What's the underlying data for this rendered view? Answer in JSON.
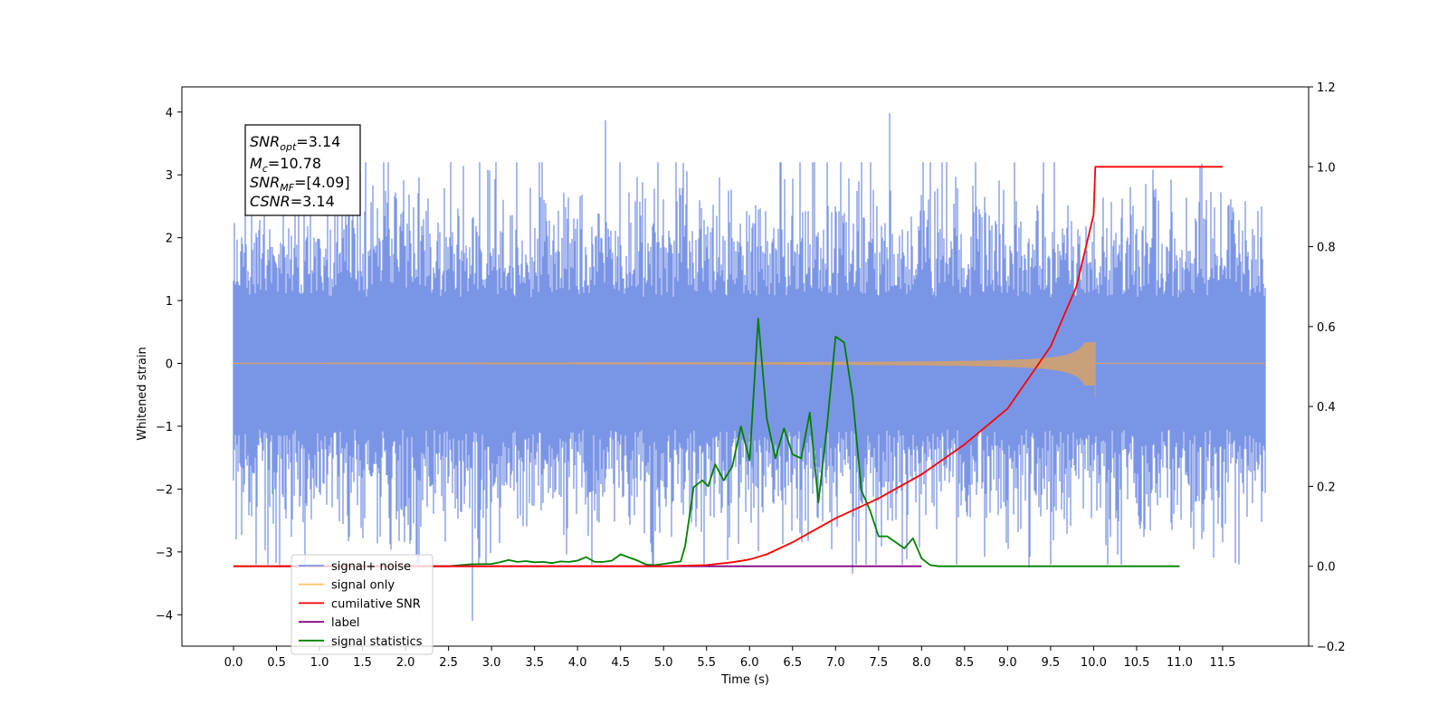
{
  "chart_data": {
    "type": "line",
    "xlabel": "Time (s)",
    "ylabel": "Whitened strain",
    "xlim": [
      -0.6,
      12.5
    ],
    "ylim": [
      -4.5,
      4.4
    ],
    "y2lim": [
      -0.2,
      1.2
    ],
    "xticks": [
      "0.0",
      "0.5",
      "1.0",
      "1.5",
      "2.0",
      "2.5",
      "3.0",
      "3.5",
      "4.0",
      "4.5",
      "5.0",
      "5.5",
      "6.0",
      "6.5",
      "7.0",
      "7.5",
      "8.0",
      "8.5",
      "9.0",
      "9.5",
      "10.0",
      "10.5",
      "11.0",
      "11.5"
    ],
    "yticks": [
      "−4",
      "−3",
      "−2",
      "−1",
      "0",
      "1",
      "2",
      "3",
      "4"
    ],
    "y2ticks": [
      "−0.2",
      "0.0",
      "0.2",
      "0.4",
      "0.6",
      "0.8",
      "1.0",
      "1.2"
    ],
    "info_box": {
      "snr_opt": "=3.14",
      "mc": "=10.78",
      "snr_mf": "=[4.09]",
      "csnr": "=3.14"
    },
    "legend": {
      "placement": "lower-left",
      "items": [
        {
          "label": "signal+ noise",
          "color": "#7b95e6"
        },
        {
          "label": "signal only",
          "color": "#ffc56b"
        },
        {
          "label": "cumilative SNR",
          "color": "#ff0000"
        },
        {
          "label": "label",
          "color": "#800080"
        },
        {
          "label": "signal statistics",
          "color": "#008000"
        }
      ]
    },
    "series": [
      {
        "name": "signal+ noise",
        "axis": "left",
        "color": "#7b95e6",
        "x_range": [
          0.0,
          12.0
        ],
        "y_range": [
          -4.1,
          4.0
        ],
        "peaks": [
          {
            "x": 2.78,
            "y": -4.1
          },
          {
            "x": 4.32,
            "y": 3.87
          },
          {
            "x": 7.63,
            "y": 3.98
          },
          {
            "x": 7.2,
            "y": -3.35
          },
          {
            "x": 9.25,
            "y": -3.25
          }
        ]
      },
      {
        "name": "signal only",
        "axis": "left",
        "color": "#c9a07a",
        "chirp_end": 10.02,
        "max_amplitude": 0.35,
        "min_amplitude": -0.55
      },
      {
        "name": "cumilative SNR",
        "axis": "right",
        "color": "#ff0000",
        "x": [
          0.0,
          5.0,
          5.5,
          5.8,
          6.0,
          6.2,
          6.5,
          7.0,
          7.5,
          8.0,
          8.5,
          9.0,
          9.5,
          9.8,
          10.0,
          10.02,
          11.5
        ],
        "y": [
          0.0,
          0.0,
          0.003,
          0.01,
          0.017,
          0.03,
          0.06,
          0.12,
          0.17,
          0.23,
          0.305,
          0.395,
          0.55,
          0.7,
          0.88,
          1.0,
          1.0
        ]
      },
      {
        "name": "label",
        "axis": "right",
        "color": "#800080",
        "x": [
          0.5,
          8.0
        ],
        "y": [
          0.0,
          0.0
        ]
      },
      {
        "name": "signal statistics",
        "axis": "right",
        "color": "#008000",
        "x": [
          0.0,
          2.5,
          2.75,
          3.0,
          3.1,
          3.2,
          3.3,
          3.4,
          3.5,
          3.6,
          3.7,
          3.8,
          3.9,
          4.0,
          4.1,
          4.2,
          4.3,
          4.4,
          4.5,
          4.6,
          4.7,
          4.8,
          4.9,
          5.0,
          5.1,
          5.2,
          5.25,
          5.35,
          5.45,
          5.52,
          5.6,
          5.7,
          5.8,
          5.9,
          6.0,
          6.1,
          6.2,
          6.3,
          6.4,
          6.5,
          6.6,
          6.7,
          6.8,
          6.9,
          7.0,
          7.1,
          7.2,
          7.3,
          7.4,
          7.5,
          7.6,
          7.7,
          7.8,
          7.9,
          8.0,
          8.1,
          8.2,
          8.5,
          11.0
        ],
        "y": [
          0.0,
          0.0,
          0.005,
          0.006,
          0.01,
          0.016,
          0.011,
          0.013,
          0.01,
          0.011,
          0.008,
          0.012,
          0.011,
          0.014,
          0.023,
          0.011,
          0.011,
          0.014,
          0.03,
          0.022,
          0.014,
          0.004,
          0.003,
          0.006,
          0.009,
          0.012,
          0.05,
          0.198,
          0.215,
          0.2,
          0.255,
          0.215,
          0.25,
          0.35,
          0.265,
          0.62,
          0.37,
          0.27,
          0.345,
          0.28,
          0.27,
          0.385,
          0.16,
          0.35,
          0.575,
          0.56,
          0.42,
          0.19,
          0.14,
          0.075,
          0.075,
          0.06,
          0.045,
          0.07,
          0.02,
          0.003,
          0.0,
          0.0,
          0.0
        ]
      }
    ]
  }
}
